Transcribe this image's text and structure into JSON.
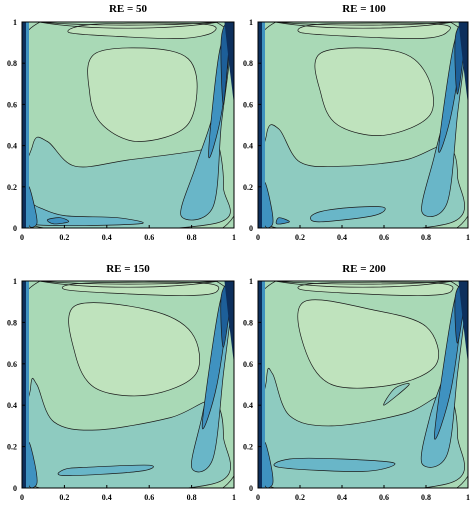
{
  "colors": {
    "level_1": "#bfe3bd",
    "level_2": "#a9d9b6",
    "level_3": "#8ecbc0",
    "level_4": "#69b6c8",
    "level_5": "#3f92c0",
    "level_6": "#1d5f99",
    "level_7": "#0d2f5c",
    "contour_line": "#1a1a1a",
    "axis": "#000000"
  },
  "chart_data": [
    {
      "type": "contour",
      "title": "RE = 50",
      "xlabel": "",
      "ylabel": "",
      "xlim": [
        0,
        1
      ],
      "ylim": [
        0,
        1
      ],
      "x_ticks": [
        "0",
        "0.2",
        "0.4",
        "0.6",
        "0.8",
        "1"
      ],
      "y_ticks": [
        "0",
        "0.2",
        "0.4",
        "0.6",
        "0.8",
        "1"
      ],
      "grid": false,
      "legend": "none",
      "shapes": [
        {
          "level": 2,
          "points": [
            [
              0.03,
              0.02
            ],
            [
              0.97,
              0.02
            ],
            [
              0.97,
              0.96
            ],
            [
              0.03,
              0.96
            ]
          ]
        },
        {
          "level": 3,
          "points": [
            [
              0.03,
              0.02
            ],
            [
              0.9,
              0.02
            ],
            [
              0.95,
              0.2
            ],
            [
              0.92,
              0.42
            ],
            [
              0.85,
              0.38
            ],
            [
              0.5,
              0.33
            ],
            [
              0.25,
              0.3
            ],
            [
              0.12,
              0.42
            ],
            [
              0.05,
              0.4
            ]
          ]
        },
        {
          "level": 4,
          "points": [
            [
              0.03,
              0.02
            ],
            [
              0.55,
              0.02
            ],
            [
              0.45,
              0.05
            ],
            [
              0.2,
              0.06
            ],
            [
              0.08,
              0.1
            ],
            [
              0.03,
              0.12
            ]
          ]
        },
        {
          "level": 4,
          "points": [
            [
              0.75,
              0.06
            ],
            [
              0.9,
              0.1
            ],
            [
              0.94,
              0.5
            ],
            [
              0.98,
              0.85
            ],
            [
              0.93,
              0.8
            ],
            [
              0.9,
              0.55
            ],
            [
              0.82,
              0.3
            ]
          ]
        },
        {
          "level": 5,
          "points": [
            [
              0.88,
              0.35
            ],
            [
              0.94,
              0.55
            ],
            [
              0.98,
              0.92
            ],
            [
              0.93,
              0.85
            ]
          ]
        },
        {
          "level": 6,
          "points": [
            [
              0.95,
              0.6
            ],
            [
              0.98,
              0.98
            ],
            [
              0.94,
              0.92
            ]
          ]
        },
        {
          "level": 5,
          "points": [
            [
              0.03,
              0.02
            ],
            [
              0.07,
              0.02
            ],
            [
              0.06,
              0.1
            ],
            [
              0.03,
              0.2
            ]
          ]
        },
        {
          "level": 5,
          "points": [
            [
              0.15,
              0.02
            ],
            [
              0.22,
              0.03
            ],
            [
              0.18,
              0.05
            ],
            [
              0.12,
              0.04
            ]
          ]
        },
        {
          "level": 1,
          "points": [
            [
              0.22,
              0.95
            ],
            [
              0.45,
              0.93
            ],
            [
              0.75,
              0.92
            ],
            [
              0.9,
              0.95
            ],
            [
              0.85,
              0.99
            ],
            [
              0.35,
              0.99
            ]
          ]
        },
        {
          "level": 1,
          "points": [
            [
              0.35,
              0.85
            ],
            [
              0.7,
              0.86
            ],
            [
              0.82,
              0.75
            ],
            [
              0.78,
              0.5
            ],
            [
              0.55,
              0.42
            ],
            [
              0.38,
              0.5
            ],
            [
              0.32,
              0.65
            ]
          ]
        }
      ]
    },
    {
      "type": "contour",
      "title": "RE = 100",
      "xlabel": "",
      "ylabel": "",
      "xlim": [
        0,
        1
      ],
      "ylim": [
        0,
        1
      ],
      "x_ticks": [
        "0",
        "0.2",
        "0.4",
        "0.6",
        "0.8",
        "1"
      ],
      "y_ticks": [
        "0",
        "0.2",
        "0.4",
        "0.6",
        "0.8",
        "1"
      ],
      "grid": false,
      "legend": "none",
      "shapes": [
        {
          "level": 2,
          "points": [
            [
              0.03,
              0.02
            ],
            [
              0.97,
              0.02
            ],
            [
              0.97,
              0.96
            ],
            [
              0.03,
              0.96
            ]
          ]
        },
        {
          "level": 3,
          "points": [
            [
              0.03,
              0.02
            ],
            [
              0.9,
              0.02
            ],
            [
              0.95,
              0.25
            ],
            [
              0.9,
              0.4
            ],
            [
              0.7,
              0.33
            ],
            [
              0.4,
              0.3
            ],
            [
              0.2,
              0.32
            ],
            [
              0.1,
              0.48
            ],
            [
              0.04,
              0.45
            ]
          ]
        },
        {
          "level": 4,
          "points": [
            [
              0.3,
              0.03
            ],
            [
              0.55,
              0.06
            ],
            [
              0.6,
              0.1
            ],
            [
              0.45,
              0.1
            ],
            [
              0.3,
              0.08
            ],
            [
              0.25,
              0.05
            ]
          ]
        },
        {
          "level": 4,
          "points": [
            [
              0.78,
              0.08
            ],
            [
              0.9,
              0.12
            ],
            [
              0.95,
              0.55
            ],
            [
              0.99,
              0.92
            ],
            [
              0.93,
              0.85
            ],
            [
              0.9,
              0.6
            ],
            [
              0.84,
              0.35
            ]
          ]
        },
        {
          "level": 5,
          "points": [
            [
              0.86,
              0.38
            ],
            [
              0.92,
              0.55
            ],
            [
              0.98,
              0.95
            ],
            [
              0.93,
              0.88
            ]
          ]
        },
        {
          "level": 6,
          "points": [
            [
              0.95,
              0.65
            ],
            [
              0.99,
              0.98
            ],
            [
              0.94,
              0.93
            ]
          ]
        },
        {
          "level": 5,
          "points": [
            [
              0.03,
              0.02
            ],
            [
              0.07,
              0.02
            ],
            [
              0.06,
              0.12
            ],
            [
              0.03,
              0.22
            ]
          ]
        },
        {
          "level": 5,
          "points": [
            [
              0.09,
              0.02
            ],
            [
              0.15,
              0.03
            ],
            [
              0.1,
              0.05
            ]
          ]
        },
        {
          "level": 1,
          "points": [
            [
              0.2,
              0.95
            ],
            [
              0.45,
              0.93
            ],
            [
              0.78,
              0.92
            ],
            [
              0.9,
              0.95
            ],
            [
              0.85,
              0.99
            ],
            [
              0.3,
              0.99
            ]
          ]
        },
        {
          "level": 1,
          "points": [
            [
              0.3,
              0.85
            ],
            [
              0.65,
              0.86
            ],
            [
              0.8,
              0.75
            ],
            [
              0.82,
              0.55
            ],
            [
              0.6,
              0.45
            ],
            [
              0.38,
              0.5
            ],
            [
              0.3,
              0.65
            ]
          ]
        }
      ]
    },
    {
      "type": "contour",
      "title": "RE = 150",
      "xlabel": "",
      "ylabel": "",
      "xlim": [
        0,
        1
      ],
      "ylim": [
        0,
        1
      ],
      "x_ticks": [
        "0",
        "0.2",
        "0.4",
        "0.6",
        "0.8",
        "1"
      ],
      "y_ticks": [
        "0",
        "0.2",
        "0.4",
        "0.6",
        "0.8",
        "1"
      ],
      "grid": false,
      "legend": "none",
      "shapes": [
        {
          "level": 2,
          "points": [
            [
              0.03,
              0.02
            ],
            [
              0.97,
              0.02
            ],
            [
              0.97,
              0.96
            ],
            [
              0.03,
              0.96
            ]
          ]
        },
        {
          "level": 3,
          "points": [
            [
              0.03,
              0.02
            ],
            [
              0.9,
              0.02
            ],
            [
              0.95,
              0.25
            ],
            [
              0.9,
              0.42
            ],
            [
              0.7,
              0.34
            ],
            [
              0.35,
              0.28
            ],
            [
              0.15,
              0.32
            ],
            [
              0.07,
              0.5
            ],
            [
              0.04,
              0.48
            ]
          ]
        },
        {
          "level": 4,
          "points": [
            [
              0.2,
              0.06
            ],
            [
              0.55,
              0.08
            ],
            [
              0.6,
              0.11
            ],
            [
              0.3,
              0.1
            ],
            [
              0.2,
              0.09
            ]
          ]
        },
        {
          "level": 4,
          "points": [
            [
              0.8,
              0.1
            ],
            [
              0.9,
              0.14
            ],
            [
              0.95,
              0.55
            ],
            [
              0.99,
              0.93
            ],
            [
              0.93,
              0.86
            ],
            [
              0.9,
              0.6
            ],
            [
              0.85,
              0.35
            ]
          ]
        },
        {
          "level": 5,
          "points": [
            [
              0.85,
              0.3
            ],
            [
              0.92,
              0.5
            ],
            [
              0.98,
              0.95
            ],
            [
              0.93,
              0.88
            ]
          ]
        },
        {
          "level": 6,
          "points": [
            [
              0.95,
              0.68
            ],
            [
              0.99,
              0.98
            ],
            [
              0.94,
              0.93
            ]
          ]
        },
        {
          "level": 5,
          "points": [
            [
              0.03,
              0.02
            ],
            [
              0.07,
              0.02
            ],
            [
              0.06,
              0.12
            ],
            [
              0.03,
              0.22
            ]
          ]
        },
        {
          "level": 1,
          "points": [
            [
              0.2,
              0.96
            ],
            [
              0.45,
              0.94
            ],
            [
              0.8,
              0.93
            ],
            [
              0.92,
              0.95
            ],
            [
              0.85,
              0.99
            ],
            [
              0.3,
              0.99
            ]
          ]
        },
        {
          "level": 1,
          "points": [
            [
              0.25,
              0.88
            ],
            [
              0.6,
              0.86
            ],
            [
              0.8,
              0.75
            ],
            [
              0.82,
              0.55
            ],
            [
              0.6,
              0.45
            ],
            [
              0.35,
              0.48
            ],
            [
              0.25,
              0.65
            ]
          ]
        }
      ]
    },
    {
      "type": "contour",
      "title": "RE = 200",
      "xlabel": "",
      "ylabel": "",
      "xlim": [
        0,
        1
      ],
      "ylim": [
        0,
        1
      ],
      "x_ticks": [
        "0",
        "0.2",
        "0.4",
        "0.6",
        "0.8",
        "1"
      ],
      "y_ticks": [
        "0",
        "0.2",
        "0.4",
        "0.6",
        "0.8",
        "1"
      ],
      "grid": false,
      "legend": "none",
      "shapes": [
        {
          "level": 2,
          "points": [
            [
              0.03,
              0.02
            ],
            [
              0.97,
              0.02
            ],
            [
              0.97,
              0.96
            ],
            [
              0.03,
              0.96
            ]
          ]
        },
        {
          "level": 3,
          "points": [
            [
              0.03,
              0.02
            ],
            [
              0.9,
              0.02
            ],
            [
              0.95,
              0.25
            ],
            [
              0.9,
              0.45
            ],
            [
              0.7,
              0.36
            ],
            [
              0.35,
              0.3
            ],
            [
              0.15,
              0.35
            ],
            [
              0.07,
              0.55
            ],
            [
              0.04,
              0.52
            ]
          ]
        },
        {
          "level": 4,
          "points": [
            [
              0.1,
              0.1
            ],
            [
              0.5,
              0.08
            ],
            [
              0.65,
              0.12
            ],
            [
              0.4,
              0.14
            ],
            [
              0.15,
              0.14
            ]
          ]
        },
        {
          "level": 4,
          "points": [
            [
              0.78,
              0.12
            ],
            [
              0.9,
              0.16
            ],
            [
              0.95,
              0.55
            ],
            [
              0.99,
              0.93
            ],
            [
              0.93,
              0.86
            ],
            [
              0.9,
              0.6
            ],
            [
              0.82,
              0.35
            ]
          ]
        },
        {
          "level": 5,
          "points": [
            [
              0.84,
              0.25
            ],
            [
              0.92,
              0.48
            ],
            [
              0.98,
              0.95
            ],
            [
              0.93,
              0.88
            ]
          ]
        },
        {
          "level": 6,
          "points": [
            [
              0.95,
              0.7
            ],
            [
              0.99,
              0.98
            ],
            [
              0.94,
              0.93
            ]
          ]
        },
        {
          "level": 5,
          "points": [
            [
              0.03,
              0.02
            ],
            [
              0.07,
              0.02
            ],
            [
              0.06,
              0.12
            ],
            [
              0.03,
              0.22
            ]
          ]
        },
        {
          "level": 3,
          "points": [
            [
              0.6,
              0.4
            ],
            [
              0.72,
              0.5
            ],
            [
              0.65,
              0.48
            ]
          ]
        },
        {
          "level": 1,
          "points": [
            [
              0.2,
              0.96
            ],
            [
              0.45,
              0.94
            ],
            [
              0.8,
              0.93
            ],
            [
              0.92,
              0.95
            ],
            [
              0.85,
              0.99
            ],
            [
              0.3,
              0.99
            ]
          ]
        },
        {
          "level": 1,
          "points": [
            [
              0.22,
              0.9
            ],
            [
              0.55,
              0.86
            ],
            [
              0.8,
              0.78
            ],
            [
              0.85,
              0.6
            ],
            [
              0.65,
              0.5
            ],
            [
              0.35,
              0.5
            ],
            [
              0.22,
              0.68
            ]
          ]
        }
      ]
    }
  ]
}
